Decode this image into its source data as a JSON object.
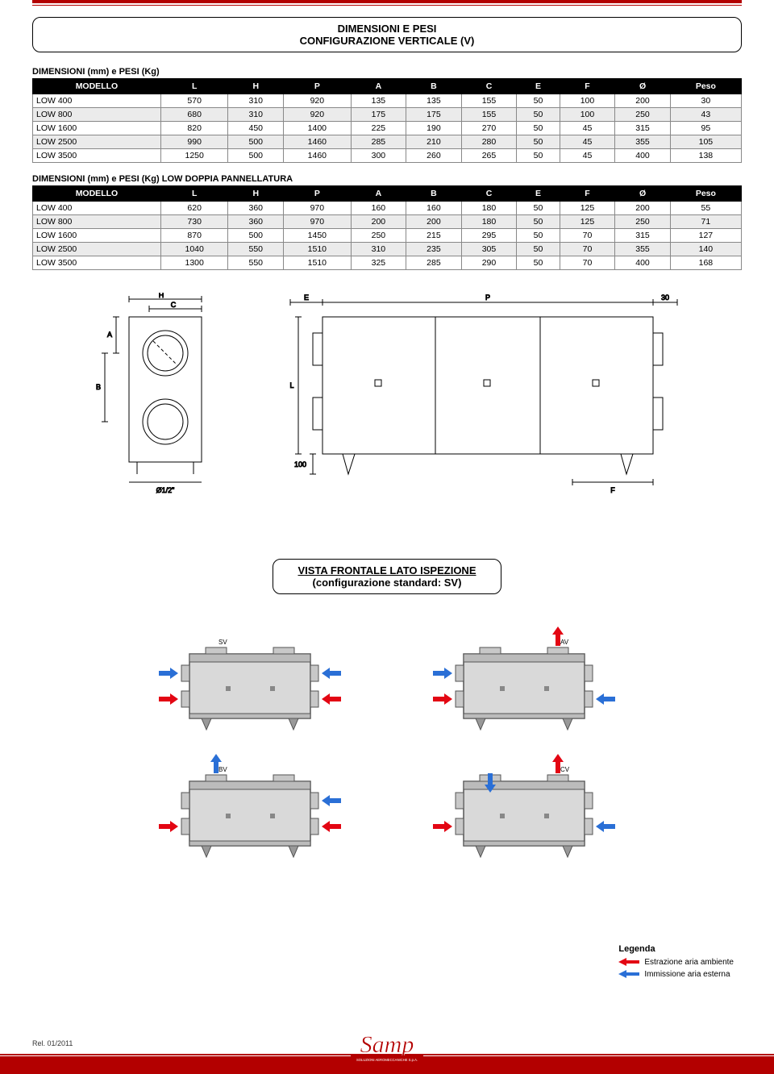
{
  "title_line1": "DIMENSIONI E PESI",
  "title_line2": "CONFIGURAZIONE VERTICALE (V)",
  "table1": {
    "caption": "DIMENSIONI (mm) e PESI (Kg)",
    "columns": [
      "MODELLO",
      "L",
      "H",
      "P",
      "A",
      "B",
      "C",
      "E",
      "F",
      "Ø",
      "Peso"
    ],
    "rows": [
      [
        "LOW 400",
        "570",
        "310",
        "920",
        "135",
        "135",
        "155",
        "50",
        "100",
        "200",
        "30"
      ],
      [
        "LOW 800",
        "680",
        "310",
        "920",
        "175",
        "175",
        "155",
        "50",
        "100",
        "250",
        "43"
      ],
      [
        "LOW 1600",
        "820",
        "450",
        "1400",
        "225",
        "190",
        "270",
        "50",
        "45",
        "315",
        "95"
      ],
      [
        "LOW 2500",
        "990",
        "500",
        "1460",
        "285",
        "210",
        "280",
        "50",
        "45",
        "355",
        "105"
      ],
      [
        "LOW 3500",
        "1250",
        "500",
        "1460",
        "300",
        "260",
        "265",
        "50",
        "45",
        "400",
        "138"
      ]
    ]
  },
  "table2": {
    "caption": "DIMENSIONI (mm) e PESI (Kg) LOW DOPPIA PANNELLATURA",
    "columns": [
      "MODELLO",
      "L",
      "H",
      "P",
      "A",
      "B",
      "C",
      "E",
      "F",
      "Ø",
      "Peso"
    ],
    "rows": [
      [
        "LOW 400",
        "620",
        "360",
        "970",
        "160",
        "160",
        "180",
        "50",
        "125",
        "200",
        "55"
      ],
      [
        "LOW 800",
        "730",
        "360",
        "970",
        "200",
        "200",
        "180",
        "50",
        "125",
        "250",
        "71"
      ],
      [
        "LOW 1600",
        "870",
        "500",
        "1450",
        "250",
        "215",
        "295",
        "50",
        "70",
        "315",
        "127"
      ],
      [
        "LOW 2500",
        "1040",
        "550",
        "1510",
        "310",
        "235",
        "305",
        "50",
        "70",
        "355",
        "140"
      ],
      [
        "LOW 3500",
        "1300",
        "550",
        "1510",
        "325",
        "285",
        "290",
        "50",
        "70",
        "400",
        "168"
      ]
    ]
  },
  "diagram_labels": {
    "H": "H",
    "C": "C",
    "A": "A",
    "B": "B",
    "diam": "Ø1/2\"",
    "E": "E",
    "P": "P",
    "thirty": "30",
    "L": "L",
    "hundred": "100",
    "F": "F"
  },
  "vista_title_line1": "VISTA FRONTALE LATO ISPEZIONE",
  "vista_title_line2": "(configurazione standard: SV)",
  "config_labels": {
    "sv": "SV",
    "av": "AV",
    "bv": "BV",
    "cv": "CV"
  },
  "legend": {
    "title": "Legenda",
    "item1": "Estrazione aria ambiente",
    "item2": "Immissione aria esterna"
  },
  "footer_rel": "Rel. 01/2011",
  "colors": {
    "brand_red": "#b30000",
    "arrow_red": "#e30613",
    "arrow_blue": "#2a6fd6",
    "unit_fill": "#d9d9d9",
    "unit_stroke": "#555"
  },
  "logo_text": "Samp",
  "logo_sub": "SOLUZIONI AEROMECCANICHE S.p.A."
}
